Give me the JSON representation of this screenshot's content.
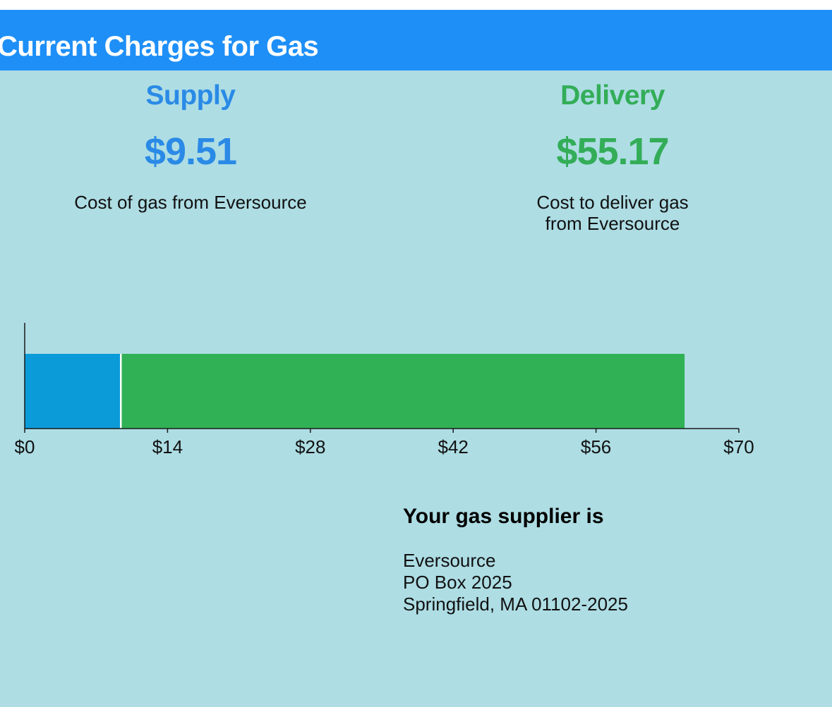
{
  "header": {
    "title": "Current Charges for Gas"
  },
  "supply": {
    "label": "Supply",
    "amount": "$9.51",
    "description": "Cost of gas from Eversource"
  },
  "delivery": {
    "label": "Delivery",
    "amount": "$55.17",
    "description_lines": [
      "Cost to deliver gas",
      "from Eversource"
    ]
  },
  "supplier": {
    "heading": "Your gas supplier is",
    "address_lines": [
      "Eversource",
      "PO Box 2025",
      "Springfield, MA 01102-2025"
    ]
  },
  "colors": {
    "supply": "#0b9bd9",
    "delivery": "#30b155",
    "banner": "#1e8ff7",
    "background": "#aedde4"
  },
  "chart_data": {
    "type": "bar",
    "orientation": "horizontal",
    "stacked": true,
    "series": [
      {
        "name": "Supply",
        "value": 9.51,
        "color": "#0b9bd9"
      },
      {
        "name": "Delivery",
        "value": 55.17,
        "color": "#30b155"
      }
    ],
    "xlim": [
      0,
      70
    ],
    "tick_labels": [
      "$0",
      "$14",
      "$28",
      "$42",
      "$56",
      "$70"
    ],
    "ticks": [
      0,
      14,
      28,
      42,
      56,
      70
    ],
    "grid": false
  }
}
